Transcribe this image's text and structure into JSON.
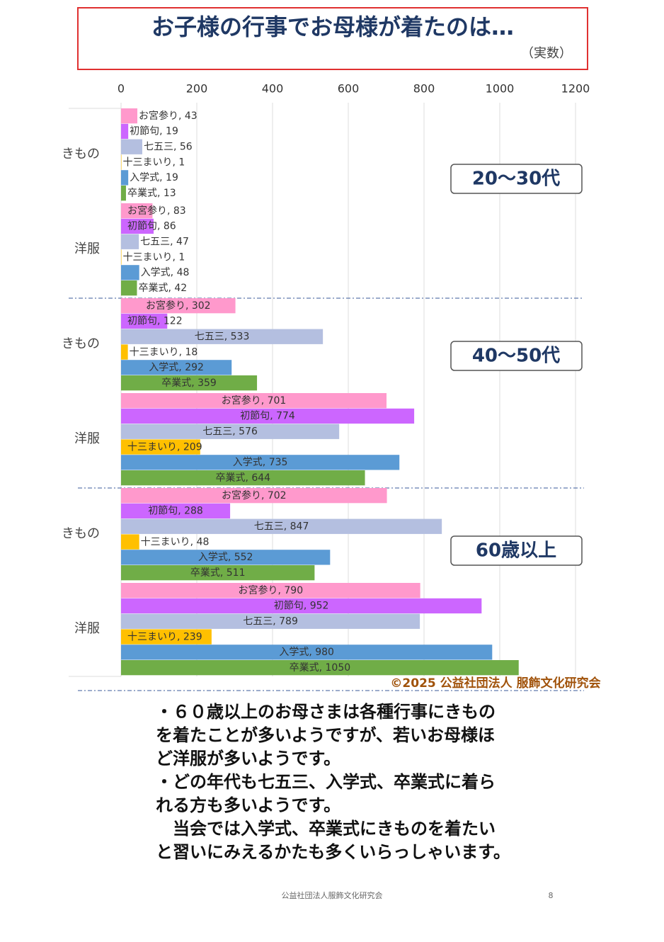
{
  "chart_data": {
    "type": "bar",
    "orientation": "horizontal",
    "title": "お子様の行事でお母様が着たのは…",
    "subtitle": "（実数）",
    "groups": [
      "20～30代",
      "40～50代",
      "60歳以上"
    ],
    "categories": [
      "きもの",
      "洋服",
      "きもの",
      "洋服",
      "きもの",
      "洋服"
    ],
    "xlim": [
      0,
      1200
    ],
    "xticks": [
      0,
      200,
      400,
      600,
      800,
      1000,
      1200
    ],
    "grid": true,
    "series": [
      {
        "color": "#ff99cc",
        "values": [
          43,
          83,
          302,
          701,
          702,
          790
        ],
        "value_labels": [
          "お宮参り, 43",
          "お宮参り, 83",
          "お宮参り, 302",
          "お宮参り, 701",
          "お宮参り, 702",
          "お宮参り, 790"
        ]
      },
      {
        "color": "#cc66ff",
        "values": [
          19,
          86,
          122,
          774,
          288,
          952
        ],
        "value_labels": [
          "初節句, 19",
          "初節句, 86",
          "初節句, 122",
          "初節句, 774",
          "初節句, 288",
          "初節句, 952"
        ]
      },
      {
        "color": "#b4bfe0",
        "values": [
          56,
          47,
          533,
          576,
          847,
          789
        ],
        "value_labels": [
          "七五三, 56",
          "七五三, 47",
          "七五三, 533",
          "七五三, 576",
          "七五三, 847",
          "七五三, 789"
        ]
      },
      {
        "color": "#ffc000",
        "values": [
          1,
          1,
          18,
          209,
          48,
          239
        ],
        "value_labels": [
          "十三まいり, 1",
          "十三まいり, 1",
          "十三まいり, 18",
          "十三まいり, 209",
          "十三まいり, 48",
          "十三まいり, 239"
        ]
      },
      {
        "color": "#5b9bd5",
        "values": [
          19,
          48,
          292,
          735,
          552,
          980
        ],
        "value_labels": [
          "入学式, 19",
          "入学式, 48",
          "入学式, 292",
          "入学式, 735",
          "入学式, 552",
          "入学式, 980"
        ]
      },
      {
        "color": "#70ad47",
        "values": [
          13,
          42,
          359,
          644,
          511,
          1050
        ],
        "value_labels": [
          "卒業式, 13",
          "卒業式, 42",
          "卒業式, 359",
          "卒業式, 644",
          "卒業式, 511",
          "卒業式, 1050"
        ]
      }
    ],
    "copyright": "©2025 公益社団法人 服飾文化研究会"
  },
  "body": [
    "・６０歳以上のお母さまは各種行事にきもの",
    "を着たことが多いようですが、若いお母様ほ",
    "ど洋服が多いようです。",
    "・どの年代も七五三、入学式、卒業式に着ら",
    "れる方も多いようです。",
    "　当会では入学式、卒業式にきものを着たい",
    "と習いにみえるかたも多くいらっしゃいます。"
  ],
  "footer": {
    "text": "公益社団法人服飾文化研究会",
    "page": "8"
  }
}
